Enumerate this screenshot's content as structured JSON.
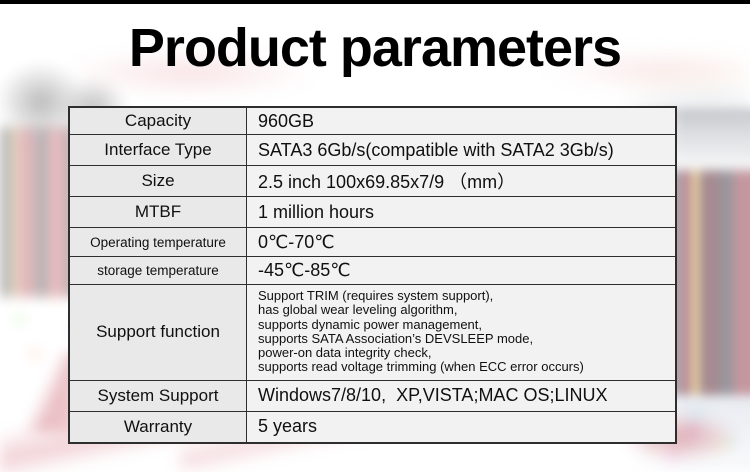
{
  "title": "Product parameters",
  "table": {
    "rows": [
      {
        "label": "Capacity",
        "value": "960GB"
      },
      {
        "label": "Interface Type",
        "value": "SATA3 6Gb/s(compatible with SATA2 3Gb/s)"
      },
      {
        "label": "Size",
        "value": "2.5 inch 100x69.85x7/9 （mm）"
      },
      {
        "label": "MTBF",
        "value": "1 million hours"
      },
      {
        "label": "Operating temperature",
        "value": "0℃-70℃"
      },
      {
        "label": "storage temperature",
        "value": "-45℃-85℃"
      },
      {
        "label": "Support function",
        "value_lines": [
          "Support TRIM (requires system support),",
          "has global wear leveling algorithm,",
          "supports dynamic power management,",
          "supports SATA Association’s DEVSLEEP mode,",
          "power-on data integrity check,",
          "supports read voltage trimming (when ECC error occurs)"
        ]
      },
      {
        "label": "System Support",
        "value": "Windows7/8/10,  XP,VISTA;MAC OS;LINUX"
      },
      {
        "label": "Warranty",
        "value": "5 years"
      }
    ]
  },
  "colors": {
    "top_bar": "#000000",
    "title_text": "#000000",
    "table_border": "#2e2e2e",
    "label_cell_bg": "#e9e9e9",
    "value_cell_bg": "#f2f2f2",
    "cell_text": "#101010"
  }
}
